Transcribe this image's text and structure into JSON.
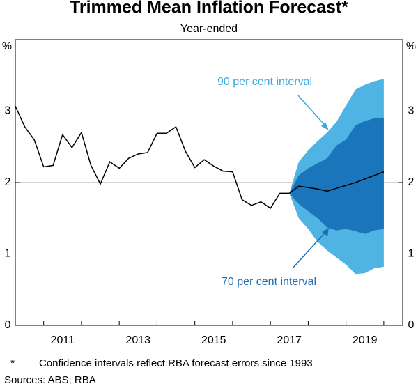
{
  "chart_data": {
    "type": "line",
    "title": "Trimmed Mean Inflation Forecast*",
    "subtitle": "Year-ended",
    "y_unit": "%",
    "xlim": [
      2010.25,
      2020.5
    ],
    "xticks": [
      {
        "value": 2011.5,
        "label": "2011"
      },
      {
        "value": 2013.5,
        "label": "2013"
      },
      {
        "value": 2015.5,
        "label": "2015"
      },
      {
        "value": 2017.5,
        "label": "2017"
      },
      {
        "value": 2019.5,
        "label": "2019"
      }
    ],
    "xminorticks": [
      2011,
      2012,
      2013,
      2014,
      2015,
      2016,
      2017,
      2018,
      2019,
      2020
    ],
    "ylim": [
      0,
      4
    ],
    "yticks": [
      0,
      1,
      2,
      3
    ],
    "grid": true,
    "bands": [
      {
        "color": "#4fb3e3",
        "x": [
          2017.5,
          2017.75,
          2018.0,
          2018.25,
          2018.5,
          2018.75,
          2019.0,
          2019.25,
          2019.5,
          2019.75,
          2020.0
        ],
        "upper": [
          1.85,
          2.29,
          2.45,
          2.58,
          2.7,
          2.85,
          3.08,
          3.3,
          3.37,
          3.42,
          3.45
        ],
        "lower": [
          1.85,
          1.5,
          1.35,
          1.17,
          1.05,
          0.95,
          0.85,
          0.72,
          0.73,
          0.8,
          0.82
        ]
      },
      {
        "color": "#1a75bb",
        "x": [
          2017.5,
          2017.75,
          2018.0,
          2018.25,
          2018.5,
          2018.75,
          2019.0,
          2019.25,
          2019.5,
          2019.75,
          2020.0
        ],
        "upper": [
          1.85,
          2.1,
          2.2,
          2.27,
          2.34,
          2.52,
          2.6,
          2.8,
          2.86,
          2.9,
          2.91
        ],
        "lower": [
          1.85,
          1.7,
          1.6,
          1.5,
          1.37,
          1.33,
          1.35,
          1.32,
          1.28,
          1.33,
          1.35
        ]
      }
    ],
    "series": [
      {
        "color": "#000000",
        "x": [
          2010.25,
          2010.5,
          2010.75,
          2011.0,
          2011.25,
          2011.5,
          2011.75,
          2012.0,
          2012.25,
          2012.5,
          2012.75,
          2013.0,
          2013.25,
          2013.5,
          2013.75,
          2014.0,
          2014.25,
          2014.5,
          2014.75,
          2015.0,
          2015.25,
          2015.5,
          2015.75,
          2016.0,
          2016.25,
          2016.5,
          2016.75,
          2017.0,
          2017.25,
          2017.5
        ],
        "values": [
          3.07,
          2.78,
          2.6,
          2.22,
          2.24,
          2.67,
          2.49,
          2.7,
          2.24,
          1.98,
          2.29,
          2.2,
          2.34,
          2.4,
          2.42,
          2.69,
          2.69,
          2.78,
          2.44,
          2.21,
          2.32,
          2.23,
          2.16,
          2.15,
          1.76,
          1.68,
          1.73,
          1.64,
          1.85,
          1.85
        ]
      },
      {
        "color": "#000000",
        "x": [
          2017.5,
          2017.75,
          2018.0,
          2018.25,
          2018.5,
          2018.75,
          2019.0,
          2019.25,
          2019.5,
          2019.75,
          2020.0
        ],
        "values": [
          1.85,
          1.95,
          1.93,
          1.91,
          1.88,
          1.92,
          1.96,
          2.0,
          2.05,
          2.1,
          2.15
        ]
      }
    ],
    "annotations": [
      {
        "text": "90 per cent interval",
        "color": "#3aa9dd"
      },
      {
        "text": "70 per cent interval",
        "color": "#1d6fb5"
      }
    ],
    "footnote_marker": "*",
    "footnote": "Confidence intervals reflect RBA forecast errors since 1993",
    "sources": "Sources: ABS; RBA"
  }
}
